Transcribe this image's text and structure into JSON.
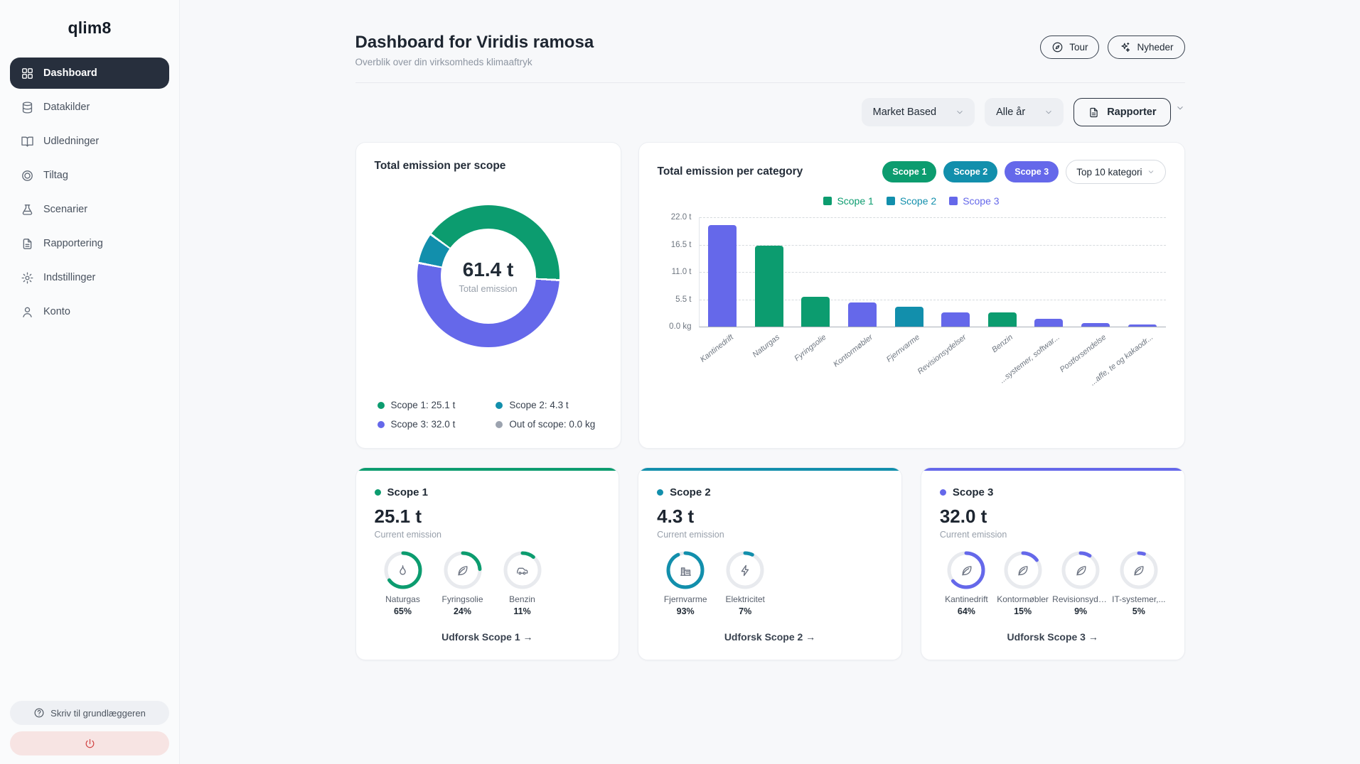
{
  "app": {
    "logo": "qlim8"
  },
  "sidebar": {
    "items": [
      {
        "label": "Dashboard",
        "icon": "grid",
        "active": true
      },
      {
        "label": "Datakilder",
        "icon": "database",
        "active": false
      },
      {
        "label": "Udledninger",
        "icon": "book",
        "active": false
      },
      {
        "label": "Tiltag",
        "icon": "target",
        "active": false
      },
      {
        "label": "Scenarier",
        "icon": "flask",
        "active": false
      },
      {
        "label": "Rapportering",
        "icon": "doc",
        "active": false
      },
      {
        "label": "Indstillinger",
        "icon": "gear",
        "active": false
      },
      {
        "label": "Konto",
        "icon": "user",
        "active": false
      }
    ],
    "footer": {
      "help_label": "Skriv til grundlæggeren"
    }
  },
  "header": {
    "title": "Dashboard for Viridis ramosa",
    "subtitle": "Overblik over din virksomheds klimaaftryk",
    "tour_label": "Tour",
    "news_label": "Nyheder"
  },
  "filters": {
    "method_selected": "Market Based",
    "year_selected": "Alle år",
    "reports_label": "Rapporter"
  },
  "colors": {
    "scope1": "#0c9c6f",
    "scope2": "#128fac",
    "scope3": "#6568ea",
    "out_of_scope": "#9ca3af"
  },
  "donut_card": {
    "title": "Total emission per scope",
    "total_value": "61.4 t",
    "total_label": "Total emission",
    "legend": [
      {
        "label": "Scope 1: 25.1 t",
        "color_key": "scope1"
      },
      {
        "label": "Scope 2: 4.3 t",
        "color_key": "scope2"
      },
      {
        "label": "Scope 3: 32.0 t",
        "color_key": "scope3"
      },
      {
        "label": "Out of scope: 0.0 kg",
        "color_key": "out_of_scope"
      }
    ]
  },
  "category_card": {
    "title": "Total emission per category",
    "badges": [
      {
        "label": "Scope 1",
        "color_key": "scope1"
      },
      {
        "label": "Scope 2",
        "color_key": "scope2"
      },
      {
        "label": "Scope 3",
        "color_key": "scope3"
      }
    ],
    "dropdown_selected": "Top 10 kategori"
  },
  "chart_data": [
    {
      "type": "pie",
      "title": "Total emission per scope",
      "labels": [
        "Scope 1",
        "Scope 2",
        "Scope 3",
        "Out of scope"
      ],
      "values_t": [
        25.1,
        4.3,
        32.0,
        0.0
      ],
      "center_total": "61.4 t",
      "color_keys": [
        "scope1",
        "scope2",
        "scope3",
        "out_of_scope"
      ],
      "donut": true,
      "start_angle_deg": -54,
      "clockwise_order": [
        0,
        2,
        1
      ]
    },
    {
      "type": "bar",
      "title": "Total emission per category",
      "categories": [
        "Kantinedrift",
        "Naturgas",
        "Fyringsolie",
        "Kontormøbler",
        "Fjernvarme",
        "Revisionsydelser",
        "Benzin",
        "...systemer, softwar...",
        "Postforsendelse",
        "...affe, te og kakaodr..."
      ],
      "values_t": [
        20.5,
        16.3,
        6.0,
        4.8,
        4.0,
        2.9,
        2.8,
        1.6,
        0.65,
        0.4
      ],
      "bar_scope": [
        3,
        1,
        1,
        3,
        2,
        3,
        1,
        3,
        3,
        3
      ],
      "ylim": [
        0,
        22
      ],
      "yticks": [
        "22.0 t",
        "16.5 t",
        "11.0 t",
        "5.5 t",
        "0.0 kg"
      ],
      "grid": "dashed",
      "legend": [
        {
          "label": "Scope 1",
          "color_key": "scope1"
        },
        {
          "label": "Scope 2",
          "color_key": "scope2"
        },
        {
          "label": "Scope 3",
          "color_key": "scope3"
        }
      ],
      "legend_position": "top"
    }
  ],
  "scope_cards": [
    {
      "name": "Scope 1",
      "color_key": "scope1",
      "value": "25.1 t",
      "sub_label": "Current emission",
      "breakdown": [
        {
          "label": "Naturgas",
          "pct": 65,
          "icon": "flame"
        },
        {
          "label": "Fyringsolie",
          "pct": 24,
          "icon": "leaf"
        },
        {
          "label": "Benzin",
          "pct": 11,
          "icon": "car"
        }
      ],
      "link_label": "Udforsk Scope 1 →"
    },
    {
      "name": "Scope 2",
      "color_key": "scope2",
      "value": "4.3 t",
      "sub_label": "Current emission",
      "breakdown": [
        {
          "label": "Fjernvarme",
          "pct": 93,
          "icon": "factory"
        },
        {
          "label": "Elektricitet",
          "pct": 7,
          "icon": "bolt"
        }
      ],
      "link_label": "Udforsk Scope 2 →"
    },
    {
      "name": "Scope 3",
      "color_key": "scope3",
      "value": "32.0 t",
      "sub_label": "Current emission",
      "breakdown": [
        {
          "label": "Kantinedrift",
          "pct": 64,
          "icon": "leaf"
        },
        {
          "label": "Kontormøbler",
          "pct": 15,
          "icon": "leaf"
        },
        {
          "label": "Revisionsyde...",
          "pct": 9,
          "icon": "leaf"
        },
        {
          "label": "IT-systemer,...",
          "pct": 5,
          "icon": "leaf"
        }
      ],
      "link_label": "Udforsk Scope 3 →"
    }
  ]
}
